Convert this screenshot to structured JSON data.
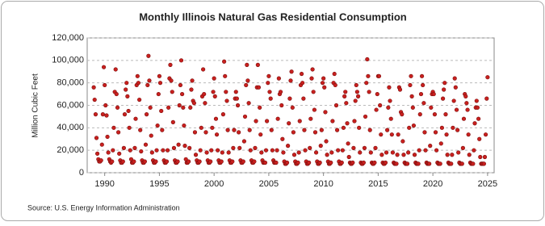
{
  "chart_data": {
    "type": "scatter",
    "title": "Monthly Illinois Natural Gas Residential Consumption",
    "ylabel": "Million Cubic Feet",
    "source": "Source: U.S. Energy Information Administration",
    "color": "#c8201e",
    "grid": true,
    "xlim": [
      1988.4,
      2025.6
    ],
    "xticks": [
      1990,
      1995,
      2000,
      2005,
      2010,
      2015,
      2020,
      2025
    ],
    "ylim": [
      0,
      120000
    ],
    "yticks": [
      0,
      {
        "value": 20000,
        "label": "20,000"
      },
      {
        "value": 40000,
        "label": "40,000"
      },
      {
        "value": 60000,
        "label": "60,000"
      },
      {
        "value": 80000,
        "label": "80,000"
      },
      {
        "value": 100000,
        "label": "100,000"
      },
      {
        "value": 120000,
        "label": "120,000"
      }
    ],
    "x": [
      1989.0,
      1989.08,
      1989.17,
      1989.25,
      1989.33,
      1989.42,
      1989.5,
      1989.58,
      1989.67,
      1989.75,
      1989.83,
      1989.92,
      1990.0,
      1990.08,
      1990.17,
      1990.25,
      1990.33,
      1990.42,
      1990.5,
      1990.58,
      1990.67,
      1990.75,
      1990.83,
      1990.92,
      1991.0,
      1991.08,
      1991.17,
      1991.25,
      1991.33,
      1991.42,
      1991.5,
      1991.58,
      1991.67,
      1991.75,
      1991.83,
      1991.92,
      1992.0,
      1992.08,
      1992.17,
      1992.25,
      1992.33,
      1992.42,
      1992.5,
      1992.58,
      1992.67,
      1992.75,
      1992.83,
      1992.92,
      1993.0,
      1993.08,
      1993.17,
      1993.25,
      1993.33,
      1993.42,
      1993.5,
      1993.58,
      1993.67,
      1993.75,
      1993.83,
      1993.92,
      1994.0,
      1994.08,
      1994.17,
      1994.25,
      1994.33,
      1994.42,
      1994.5,
      1994.58,
      1994.67,
      1994.75,
      1994.83,
      1994.92,
      1995.0,
      1995.08,
      1995.17,
      1995.25,
      1995.33,
      1995.42,
      1995.5,
      1995.58,
      1995.67,
      1995.75,
      1995.83,
      1995.92,
      1996.0,
      1996.08,
      1996.17,
      1996.25,
      1996.33,
      1996.42,
      1996.5,
      1996.58,
      1996.67,
      1996.75,
      1996.83,
      1996.92,
      1997.0,
      1997.08,
      1997.17,
      1997.25,
      1997.33,
      1997.42,
      1997.5,
      1997.58,
      1997.67,
      1997.75,
      1997.83,
      1997.92,
      1998.0,
      1998.08,
      1998.17,
      1998.25,
      1998.33,
      1998.42,
      1998.5,
      1998.58,
      1998.67,
      1998.75,
      1998.83,
      1998.92,
      1999.0,
      1999.08,
      1999.17,
      1999.25,
      1999.33,
      1999.42,
      1999.5,
      1999.58,
      1999.67,
      1999.75,
      1999.83,
      1999.92,
      2000.0,
      2000.08,
      2000.17,
      2000.25,
      2000.33,
      2000.42,
      2000.5,
      2000.58,
      2000.67,
      2000.75,
      2000.83,
      2000.92,
      2001.0,
      2001.08,
      2001.17,
      2001.25,
      2001.33,
      2001.42,
      2001.5,
      2001.58,
      2001.67,
      2001.75,
      2001.83,
      2001.92,
      2002.0,
      2002.08,
      2002.17,
      2002.25,
      2002.33,
      2002.42,
      2002.5,
      2002.58,
      2002.67,
      2002.75,
      2002.83,
      2002.92,
      2003.0,
      2003.08,
      2003.17,
      2003.25,
      2003.33,
      2003.42,
      2003.5,
      2003.58,
      2003.67,
      2003.75,
      2003.83,
      2003.92,
      2004.0,
      2004.08,
      2004.17,
      2004.25,
      2004.33,
      2004.42,
      2004.5,
      2004.58,
      2004.67,
      2004.75,
      2004.83,
      2004.92,
      2005.0,
      2005.08,
      2005.17,
      2005.25,
      2005.33,
      2005.42,
      2005.5,
      2005.58,
      2005.67,
      2005.75,
      2005.83,
      2005.92,
      2006.0,
      2006.08,
      2006.17,
      2006.25,
      2006.33,
      2006.42,
      2006.5,
      2006.58,
      2006.67,
      2006.75,
      2006.83,
      2006.92,
      2007.0,
      2007.08,
      2007.17,
      2007.25,
      2007.33,
      2007.42,
      2007.5,
      2007.58,
      2007.67,
      2007.75,
      2007.83,
      2007.92,
      2008.0,
      2008.08,
      2008.17,
      2008.25,
      2008.33,
      2008.42,
      2008.5,
      2008.58,
      2008.67,
      2008.75,
      2008.83,
      2008.92,
      2009.0,
      2009.08,
      2009.17,
      2009.25,
      2009.33,
      2009.42,
      2009.5,
      2009.58,
      2009.67,
      2009.75,
      2009.83,
      2009.92,
      2010.0,
      2010.08,
      2010.17,
      2010.25,
      2010.33,
      2010.42,
      2010.5,
      2010.58,
      2010.67,
      2010.75,
      2010.83,
      2010.92,
      2011.0,
      2011.08,
      2011.17,
      2011.25,
      2011.33,
      2011.42,
      2011.5,
      2011.58,
      2011.67,
      2011.75,
      2011.83,
      2011.92,
      2012.0,
      2012.08,
      2012.17,
      2012.25,
      2012.33,
      2012.42,
      2012.5,
      2012.58,
      2012.67,
      2012.75,
      2012.83,
      2012.92,
      2013.0,
      2013.08,
      2013.17,
      2013.25,
      2013.33,
      2013.42,
      2013.5,
      2013.58,
      2013.67,
      2013.75,
      2013.83,
      2013.92,
      2014.0,
      2014.08,
      2014.17,
      2014.25,
      2014.33,
      2014.42,
      2014.5,
      2014.58,
      2014.67,
      2014.75,
      2014.83,
      2014.92,
      2015.0,
      2015.08,
      2015.17,
      2015.25,
      2015.33,
      2015.42,
      2015.5,
      2015.58,
      2015.67,
      2015.75,
      2015.83,
      2015.92,
      2016.0,
      2016.08,
      2016.17,
      2016.25,
      2016.33,
      2016.42,
      2016.5,
      2016.58,
      2016.67,
      2016.75,
      2016.83,
      2016.92,
      2017.0,
      2017.08,
      2017.17,
      2017.25,
      2017.33,
      2017.42,
      2017.5,
      2017.58,
      2017.67,
      2017.75,
      2017.83,
      2017.92,
      2018.0,
      2018.08,
      2018.17,
      2018.25,
      2018.33,
      2018.42,
      2018.5,
      2018.58,
      2018.67,
      2018.75,
      2018.83,
      2018.92,
      2019.0,
      2019.08,
      2019.17,
      2019.25,
      2019.33,
      2019.42,
      2019.5,
      2019.58,
      2019.67,
      2019.75,
      2019.83,
      2019.92,
      2020.0,
      2020.08,
      2020.17,
      2020.25,
      2020.33,
      2020.42,
      2020.5,
      2020.58,
      2020.67,
      2020.75,
      2020.83,
      2020.92,
      2021.0,
      2021.08,
      2021.17,
      2021.25,
      2021.33,
      2021.42,
      2021.5,
      2021.58,
      2021.67,
      2021.75,
      2021.83,
      2021.92,
      2022.0,
      2022.08,
      2022.17,
      2022.25,
      2022.33,
      2022.42,
      2022.5,
      2022.58,
      2022.67,
      2022.75,
      2022.83,
      2022.92,
      2023.0,
      2023.08,
      2023.17,
      2023.25,
      2023.33,
      2023.42,
      2023.5,
      2023.58,
      2023.67,
      2023.75,
      2023.83,
      2023.92,
      2024.0,
      2024.08,
      2024.17,
      2024.25,
      2024.33,
      2024.42,
      2024.5,
      2024.58,
      2024.67,
      2024.75,
      2024.83,
      2024.92,
      2025.0
    ],
    "values": [
      76000,
      65000,
      52000,
      31000,
      17000,
      12000,
      10000,
      10000,
      11000,
      25000,
      52000,
      94000,
      78000,
      60000,
      51000,
      32000,
      18000,
      12000,
      10000,
      9000,
      10000,
      20000,
      40000,
      72000,
      92000,
      70000,
      58000,
      36000,
      17000,
      11000,
      9000,
      9000,
      10000,
      22000,
      52000,
      74000,
      80000,
      68000,
      55000,
      40000,
      20000,
      12000,
      9000,
      9000,
      10000,
      22000,
      48000,
      78000,
      86000,
      80000,
      65000,
      38000,
      19000,
      11000,
      9000,
      9000,
      10000,
      25000,
      52000,
      78000,
      104000,
      82000,
      58000,
      33000,
      18000,
      11000,
      9000,
      9000,
      10000,
      20000,
      42000,
      70000,
      86000,
      80000,
      55000,
      38000,
      20000,
      11000,
      9000,
      9000,
      10000,
      20000,
      58000,
      84000,
      96000,
      82000,
      72000,
      45000,
      22000,
      11000,
      9000,
      9000,
      10000,
      25000,
      60000,
      78000,
      100000,
      70000,
      58000,
      42000,
      24000,
      12000,
      9000,
      9000,
      10000,
      22000,
      58000,
      74000,
      82000,
      64000,
      62000,
      36000,
      16000,
      11000,
      9000,
      9000,
      10000,
      20000,
      40000,
      68000,
      92000,
      70000,
      62000,
      36000,
      18000,
      11000,
      9000,
      9000,
      10000,
      20000,
      40000,
      72000,
      84000,
      68000,
      48000,
      34000,
      20000,
      11000,
      9000,
      9000,
      10000,
      18000,
      52000,
      99000,
      86000,
      72000,
      64000,
      38000,
      18000,
      11000,
      9000,
      9000,
      10000,
      22000,
      38000,
      66000,
      72000,
      66000,
      60000,
      36000,
      22000,
      11000,
      9000,
      9000,
      10000,
      28000,
      50000,
      78000,
      96000,
      82000,
      62000,
      38000,
      20000,
      11000,
      9000,
      9000,
      10000,
      22000,
      46000,
      76000,
      96000,
      76000,
      58000,
      34000,
      18000,
      11000,
      9000,
      9000,
      9000,
      20000,
      46000,
      80000,
      86000,
      72000,
      66000,
      38000,
      20000,
      11000,
      9000,
      9000,
      9000,
      20000,
      48000,
      84000,
      70000,
      72000,
      60000,
      30000,
      18000,
      10000,
      8000,
      8000,
      9000,
      24000,
      44000,
      66000,
      82000,
      90000,
      58000,
      36000,
      16000,
      10000,
      8000,
      8000,
      9000,
      18000,
      46000,
      78000,
      88000,
      80000,
      66000,
      38000,
      20000,
      10000,
      8000,
      8000,
      9000,
      22000,
      48000,
      84000,
      92000,
      72000,
      56000,
      36000,
      18000,
      10000,
      8000,
      8000,
      9000,
      24000,
      38000,
      80000,
      84000,
      76000,
      54000,
      28000,
      16000,
      10000,
      8000,
      8000,
      9000,
      18000,
      46000,
      80000,
      88000,
      78000,
      60000,
      38000,
      20000,
      10000,
      8000,
      8000,
      9000,
      20000,
      40000,
      68000,
      72000,
      62000,
      44000,
      26000,
      14000,
      9000,
      8000,
      8000,
      9000,
      22000,
      46000,
      64000,
      78000,
      72000,
      68000,
      40000,
      18000,
      9000,
      8000,
      8000,
      9000,
      22000,
      50000,
      80000,
      101000,
      86000,
      72000,
      38000,
      18000,
      9000,
      8000,
      8000,
      9000,
      22000,
      56000,
      70000,
      86000,
      86000,
      60000,
      34000,
      16000,
      9000,
      8000,
      8000,
      9000,
      18000,
      38000,
      58000,
      76000,
      64000,
      48000,
      34000,
      18000,
      9000,
      8000,
      8000,
      8000,
      16000,
      34000,
      76000,
      74000,
      54000,
      52000,
      28000,
      16000,
      9000,
      8000,
      8000,
      8000,
      18000,
      40000,
      78000,
      86000,
      68000,
      58000,
      42000,
      16000,
      9000,
      8000,
      8000,
      8000,
      20000,
      52000,
      70000,
      86000,
      78000,
      62000,
      36000,
      20000,
      9000,
      8000,
      8000,
      8000,
      24000,
      58000,
      70000,
      72000,
      70000,
      52000,
      36000,
      20000,
      9000,
      8000,
      8000,
      8000,
      26000,
      40000,
      66000,
      74000,
      80000,
      52000,
      34000,
      16000,
      9000,
      8000,
      8000,
      8000,
      16000,
      40000,
      64000,
      84000,
      76000,
      56000,
      38000,
      18000,
      9000,
      8000,
      8000,
      8000,
      22000,
      48000,
      70000,
      68000,
      62000,
      56000,
      34000,
      16000,
      9000,
      8000,
      8000,
      8000,
      20000,
      44000,
      58000,
      64000,
      58000,
      48000,
      30000,
      14000,
      8000,
      8000,
      8000,
      8000,
      14000,
      34000,
      66000,
      85000
    ]
  }
}
